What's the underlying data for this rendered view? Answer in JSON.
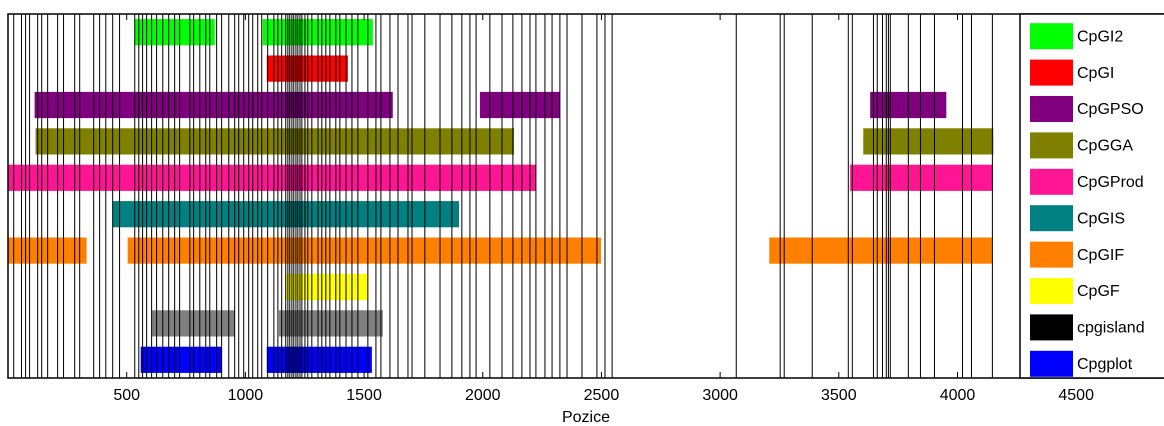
{
  "chart_data": {
    "type": "range-bar",
    "x_label": "Pozice",
    "xlim": [
      0,
      4870
    ],
    "xticks": [
      500,
      1000,
      1500,
      2000,
      2500,
      3000,
      3500,
      4000,
      4500
    ],
    "legend": "right",
    "series": [
      {
        "name": "CpGI2",
        "color": "#00ff00",
        "values": [
          [
            534,
            871
          ],
          [
            1073,
            1537
          ]
        ]
      },
      {
        "name": "CpGI",
        "color": "#ff0000",
        "values": [
          [
            1090,
            1432
          ]
        ]
      },
      {
        "name": "CpGPSO",
        "color": "#800080",
        "values": [
          [
            112,
            1621
          ],
          [
            1988,
            2325
          ],
          [
            3632,
            3953
          ]
        ]
      },
      {
        "name": "CpGGA",
        "color": "#808000",
        "values": [
          [
            116,
            2132
          ],
          [
            3603,
            4151
          ]
        ]
      },
      {
        "name": "CpGProd",
        "color": "#ff1493",
        "values": [
          [
            0,
            2224
          ],
          [
            3548,
            4147
          ]
        ]
      },
      {
        "name": "CpGIS",
        "color": "#008080",
        "values": [
          [
            441,
            1900
          ]
        ]
      },
      {
        "name": "CpGIF",
        "color": "#ff8000",
        "values": [
          [
            0,
            331
          ],
          [
            504,
            2498
          ],
          [
            3207,
            4147
          ]
        ]
      },
      {
        "name": "CpGF",
        "color": "#ffff00",
        "values": [
          [
            1170,
            1516
          ]
        ]
      },
      {
        "name": "cpgisland",
        "color": "#000000",
        "alpha": 0.5,
        "values": [
          [
            605,
            955
          ],
          [
            1141,
            1579
          ]
        ]
      },
      {
        "name": "Cpgplot",
        "color": "#0000ff",
        "values": [
          [
            559,
            900
          ],
          [
            1090,
            1533
          ]
        ]
      }
    ],
    "vlines": [
      24,
      57,
      74,
      91,
      125,
      142,
      167,
      209,
      234,
      281,
      302,
      361,
      386,
      412,
      441,
      470,
      534,
      551,
      567,
      584,
      605,
      626,
      652,
      677,
      702,
      723,
      766,
      782,
      808,
      833,
      850,
      879,
      900,
      930,
      955,
      972,
      993,
      1014,
      1031,
      1052,
      1069,
      1094,
      1120,
      1137,
      1153,
      1170,
      1179,
      1187,
      1196,
      1204,
      1213,
      1221,
      1230,
      1238,
      1251,
      1263,
      1280,
      1306,
      1322,
      1339,
      1356,
      1381,
      1398,
      1424,
      1449,
      1474,
      1516,
      1550,
      1571,
      1609,
      1643,
      1685,
      1702,
      1756,
      1820,
      1870,
      1912,
      1946,
      1972,
      2030,
      2081,
      2127,
      2165,
      2199,
      2224,
      2262,
      2292,
      2325,
      2355,
      2418,
      2481,
      2515,
      2545,
      3068,
      3253,
      3270,
      3388,
      3540,
      3557,
      3646,
      3662,
      3684,
      3700,
      3709,
      3717,
      3793,
      3844,
      3903,
      4021,
      4059,
      4147
    ],
    "vline_color": "#000000"
  }
}
